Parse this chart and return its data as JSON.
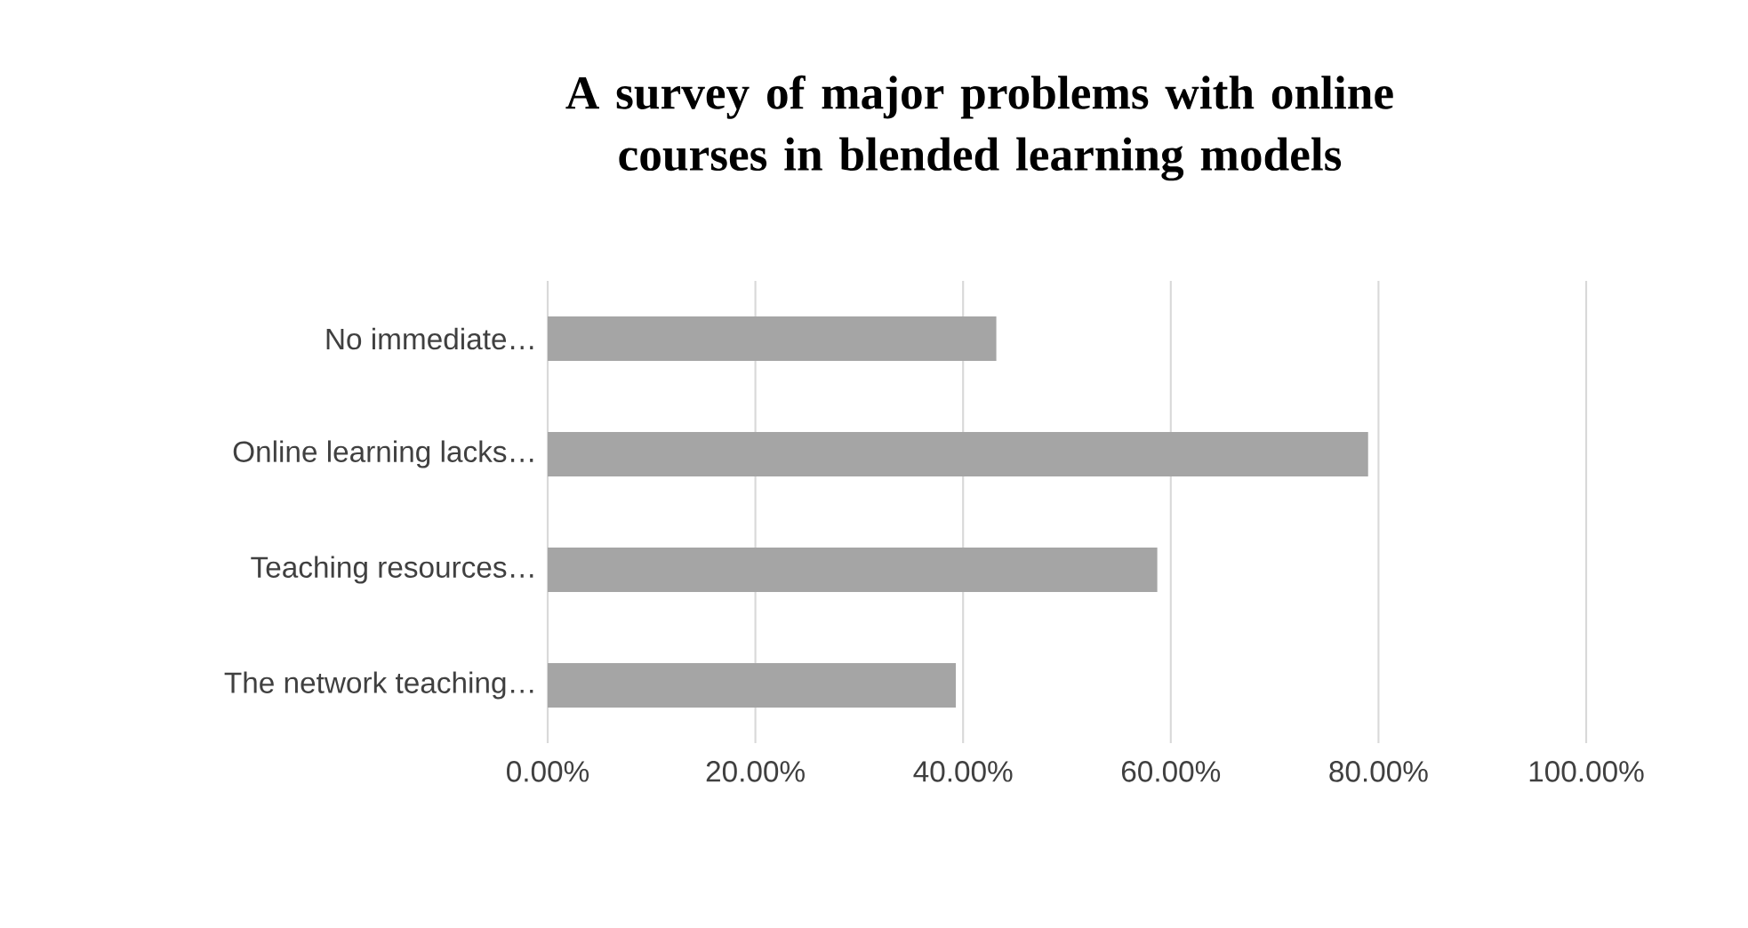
{
  "chart_data": {
    "type": "bar",
    "orientation": "horizontal",
    "title": "A survey of major problems with online courses in blended learning models",
    "categories": [
      "No immediate…",
      "Online learning lacks…",
      "Teaching resources…",
      "The network teaching…"
    ],
    "values": [
      43.2,
      79.0,
      58.7,
      39.3
    ],
    "color": "#a5a5a5",
    "xlim": [
      0,
      100
    ],
    "xticks": [
      {
        "value": 0,
        "label": "0.00%"
      },
      {
        "value": 20,
        "label": "20.00%"
      },
      {
        "value": 40,
        "label": "40.00%"
      },
      {
        "value": 60,
        "label": "60.00%"
      },
      {
        "value": 80,
        "label": "80.00%"
      },
      {
        "value": 100,
        "label": "100.00%"
      }
    ],
    "grid": "x"
  }
}
